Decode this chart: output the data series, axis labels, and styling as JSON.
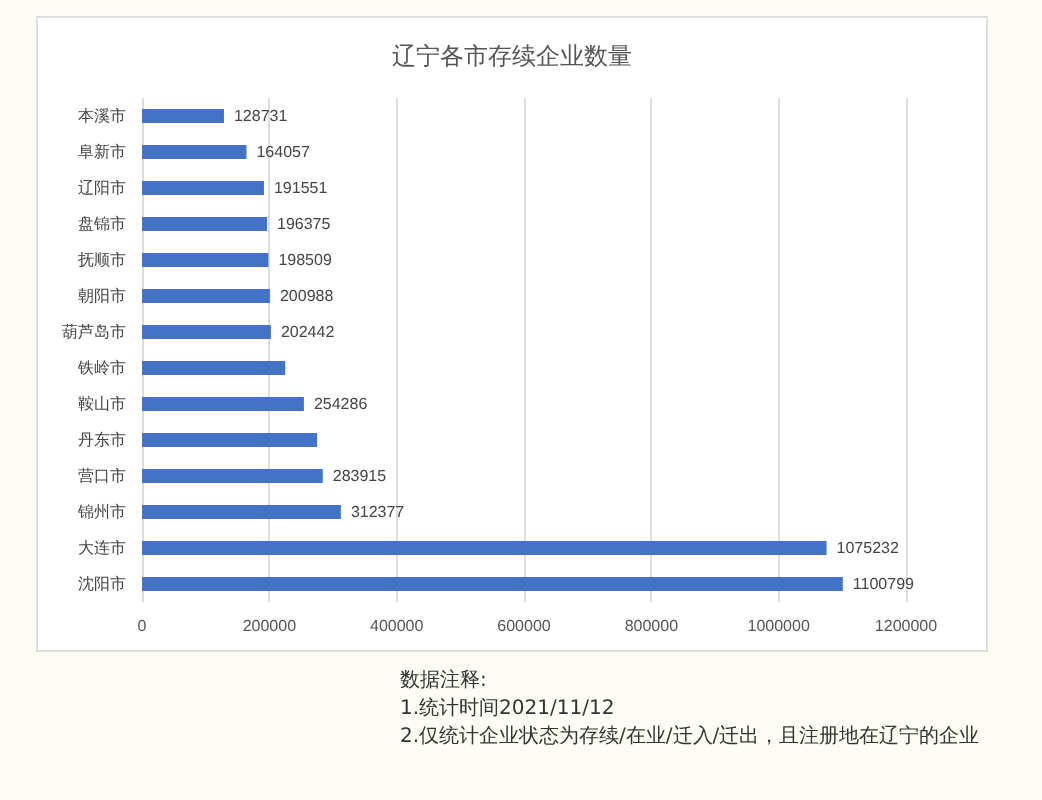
{
  "chart_data": {
    "type": "bar",
    "orientation": "horizontal",
    "title": "辽宁各市存续企业数量",
    "categories": [
      "本溪市",
      "阜新市",
      "辽阳市",
      "盘锦市",
      "抚顺市",
      "朝阳市",
      "葫芦岛市",
      "铁岭市",
      "鞍山市",
      "丹东市",
      "营口市",
      "锦州市",
      "大连市",
      "沈阳市"
    ],
    "values": [
      128731,
      164057,
      191551,
      196375,
      198509,
      200988,
      202442,
      225000,
      254286,
      275000,
      283915,
      312377,
      1075232,
      1100799
    ],
    "value_labels": [
      "128731",
      "164057",
      "191551",
      "196375",
      "198509",
      "200988",
      "202442",
      null,
      "254286",
      null,
      "283915",
      "312377",
      "1075232",
      "1100799"
    ],
    "color": "#4472c4",
    "xlim": [
      0,
      1200000
    ],
    "xticks": [
      0,
      200000,
      400000,
      600000,
      800000,
      1000000,
      1200000
    ],
    "grid": "x",
    "annotations": [
      "数据注释:",
      "1.统计时间2021/11/12",
      "2.仅统计企业状态为存续/在业/迁入/迁出，且注册地在辽宁的企业"
    ]
  }
}
